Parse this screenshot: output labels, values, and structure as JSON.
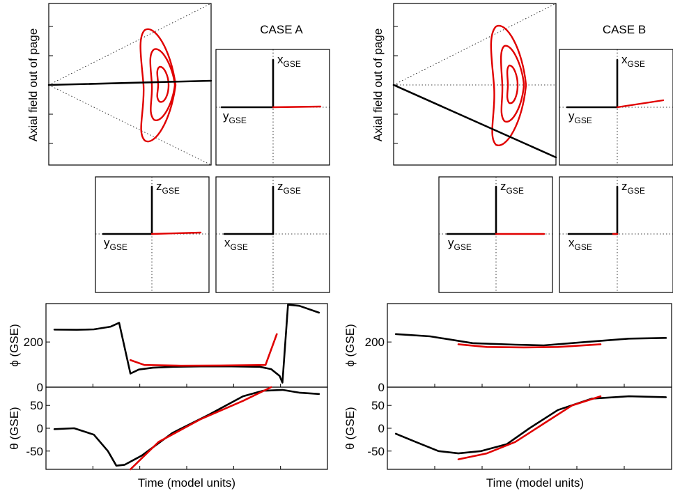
{
  "cases": [
    {
      "title": "CASE A",
      "ylabel_top": "Axial field out of page",
      "axes_labels": {
        "xy": {
          "h": "y",
          "v": "x",
          "sub": "GSE"
        },
        "yz": {
          "h": "y",
          "v": "z",
          "sub": "GSE"
        },
        "xz": {
          "h": "x",
          "v": "z",
          "sub": "GSE"
        }
      },
      "phi_ylabel": "ϕ (GSE)",
      "theta_ylabel": "θ (GSE)",
      "xlabel": "Time (model units)",
      "phi_ticks": [
        "0",
        "200"
      ],
      "theta_ticks": [
        "-50",
        "0",
        "50"
      ]
    },
    {
      "title": "CASE B",
      "ylabel_top": "Axial field out of page",
      "axes_labels": {
        "xy": {
          "h": "y",
          "v": "x",
          "sub": "GSE"
        },
        "yz": {
          "h": "y",
          "v": "z",
          "sub": "GSE"
        },
        "xz": {
          "h": "x",
          "v": "z",
          "sub": "GSE"
        }
      },
      "phi_ylabel": "ϕ (GSE)",
      "theta_ylabel": "θ (GSE)",
      "xlabel": "Time (model units)",
      "phi_ticks": [
        "0",
        "200"
      ],
      "theta_ticks": [
        "-50",
        "0",
        "50"
      ]
    }
  ],
  "colors": {
    "model": "#e00000",
    "observed": "#000000"
  },
  "chart_data": [
    {
      "type": "line",
      "title": "CASE A — ϕ (GSE)",
      "ylabel": "ϕ (GSE)",
      "xlabel": "Time (model units)",
      "ylim": [
        0,
        370
      ],
      "xlim": [
        0,
        1
      ],
      "series": [
        {
          "x": [
            0.03,
            0.11,
            0.17,
            0.23,
            0.26,
            0.3,
            0.33,
            0.38,
            0.45,
            0.55,
            0.66,
            0.76,
            0.8,
            0.83,
            0.84,
            0.86,
            0.9,
            0.97
          ],
          "y": [
            255,
            254,
            256,
            268,
            285,
            60,
            78,
            86,
            90,
            92,
            92,
            90,
            80,
            50,
            20,
            365,
            360,
            330
          ]
        },
        {
          "x": [
            0.3,
            0.35,
            0.48,
            0.62,
            0.78,
            0.82
          ],
          "y": [
            120,
            98,
            95,
            96,
            98,
            235
          ]
        }
      ]
    },
    {
      "type": "line",
      "title": "CASE A — θ (GSE)",
      "ylabel": "θ (GSE)",
      "xlabel": "Time (model units)",
      "ylim": [
        -90,
        90
      ],
      "xlim": [
        0,
        1
      ],
      "series": [
        {
          "x": [
            0.03,
            0.1,
            0.17,
            0.22,
            0.25,
            0.28,
            0.34,
            0.45,
            0.58,
            0.7,
            0.77,
            0.84,
            0.9,
            0.97
          ],
          "y": [
            -2,
            0,
            -14,
            -50,
            -82,
            -80,
            -60,
            -10,
            30,
            70,
            82,
            84,
            78,
            75
          ]
        },
        {
          "x": [
            0.3,
            0.4,
            0.55,
            0.7,
            0.8
          ],
          "y": [
            -90,
            -30,
            20,
            60,
            90
          ]
        }
      ]
    },
    {
      "type": "line",
      "title": "CASE B — ϕ (GSE)",
      "ylabel": "ϕ (GSE)",
      "xlabel": "Time (model units)",
      "ylim": [
        0,
        370
      ],
      "xlim": [
        0,
        1
      ],
      "series": [
        {
          "x": [
            0.03,
            0.15,
            0.3,
            0.45,
            0.55,
            0.7,
            0.85,
            0.98
          ],
          "y": [
            235,
            225,
            195,
            188,
            185,
            200,
            215,
            218
          ]
        },
        {
          "x": [
            0.25,
            0.35,
            0.48,
            0.6,
            0.75
          ],
          "y": [
            190,
            178,
            176,
            178,
            190
          ]
        }
      ]
    },
    {
      "type": "line",
      "title": "CASE B — θ (GSE)",
      "ylabel": "θ (GSE)",
      "xlabel": "Time (model units)",
      "ylim": [
        -90,
        90
      ],
      "xlim": [
        0,
        1
      ],
      "series": [
        {
          "x": [
            0.03,
            0.1,
            0.18,
            0.25,
            0.33,
            0.42,
            0.5,
            0.6,
            0.72,
            0.85,
            0.98
          ],
          "y": [
            -12,
            -30,
            -50,
            -55,
            -50,
            -35,
            0,
            40,
            65,
            70,
            68
          ]
        },
        {
          "x": [
            0.25,
            0.35,
            0.45,
            0.55,
            0.65,
            0.75
          ],
          "y": [
            -68,
            -55,
            -30,
            10,
            50,
            70
          ]
        }
      ]
    }
  ]
}
